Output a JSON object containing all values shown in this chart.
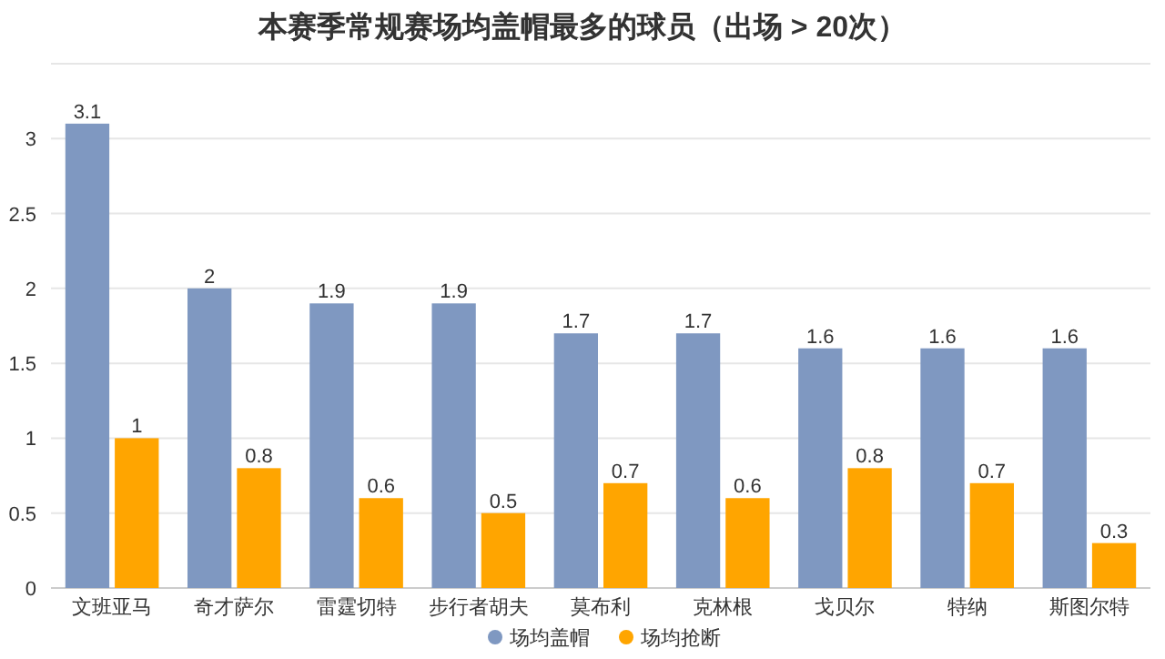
{
  "chart_data": {
    "type": "bar",
    "title": "本赛季常规赛场均盖帽最多的球员（出场 > 20次）",
    "categories": [
      "文班亚马",
      "奇才萨尔",
      "雷霆切特",
      "步行者胡夫",
      "莫布利",
      "克林根",
      "戈贝尔",
      "特纳",
      "斯图尔特"
    ],
    "series": [
      {
        "name": "场均盖帽",
        "color": "#7f98c1",
        "values": [
          3.1,
          2,
          1.9,
          1.9,
          1.7,
          1.7,
          1.6,
          1.6,
          1.6
        ]
      },
      {
        "name": "场均抢断",
        "color": "#ffa500",
        "values": [
          1,
          0.8,
          0.6,
          0.5,
          0.7,
          0.6,
          0.8,
          0.7,
          0.3
        ]
      }
    ],
    "ylim": [
      0,
      3.5
    ],
    "yticks": [
      0,
      0.5,
      1,
      1.5,
      2,
      2.5,
      3
    ],
    "grid": "y",
    "legend": "bottom",
    "data_labels": true
  }
}
